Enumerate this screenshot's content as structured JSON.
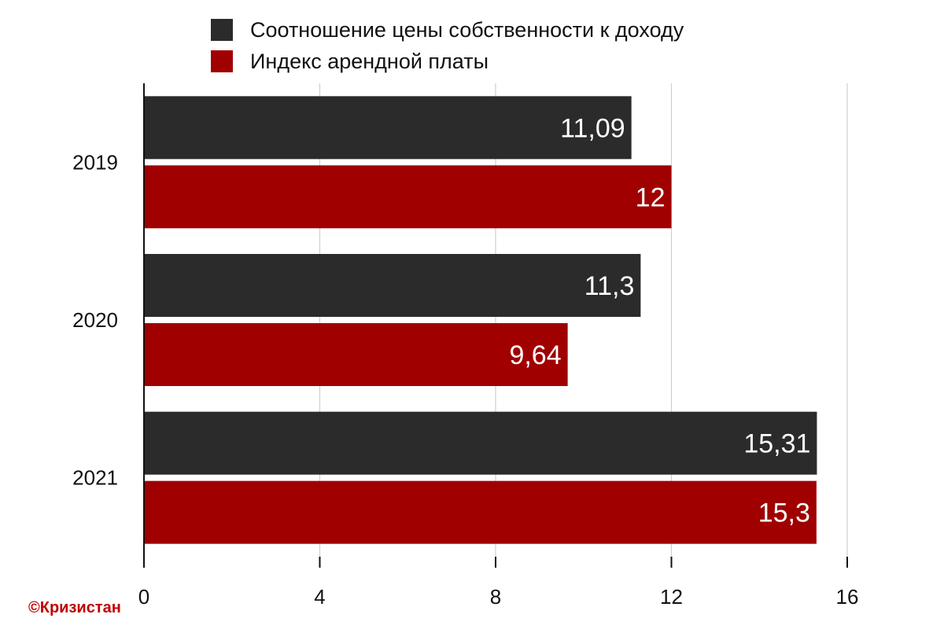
{
  "chart_data": {
    "type": "bar",
    "orientation": "horizontal",
    "categories": [
      "2019",
      "2020",
      "2021"
    ],
    "series": [
      {
        "name": "Соотношение цены собственности к доходу",
        "values": [
          11.09,
          11.3,
          15.31
        ],
        "labels": [
          "11,09",
          "11,3",
          "15,31"
        ],
        "color": "#2b2b2b"
      },
      {
        "name": "Индекс арендной платы",
        "values": [
          12,
          9.64,
          15.3
        ],
        "labels": [
          "12",
          "9,64",
          "15,3"
        ],
        "color": "#a00000"
      }
    ],
    "xlim": [
      0,
      16
    ],
    "xticks": [
      0,
      4,
      8,
      12,
      16
    ],
    "xtick_labels": [
      "0",
      "4",
      "8",
      "12",
      "16"
    ],
    "grid": "vertical",
    "legend_position": "top"
  },
  "copyright": "©Кризистан"
}
